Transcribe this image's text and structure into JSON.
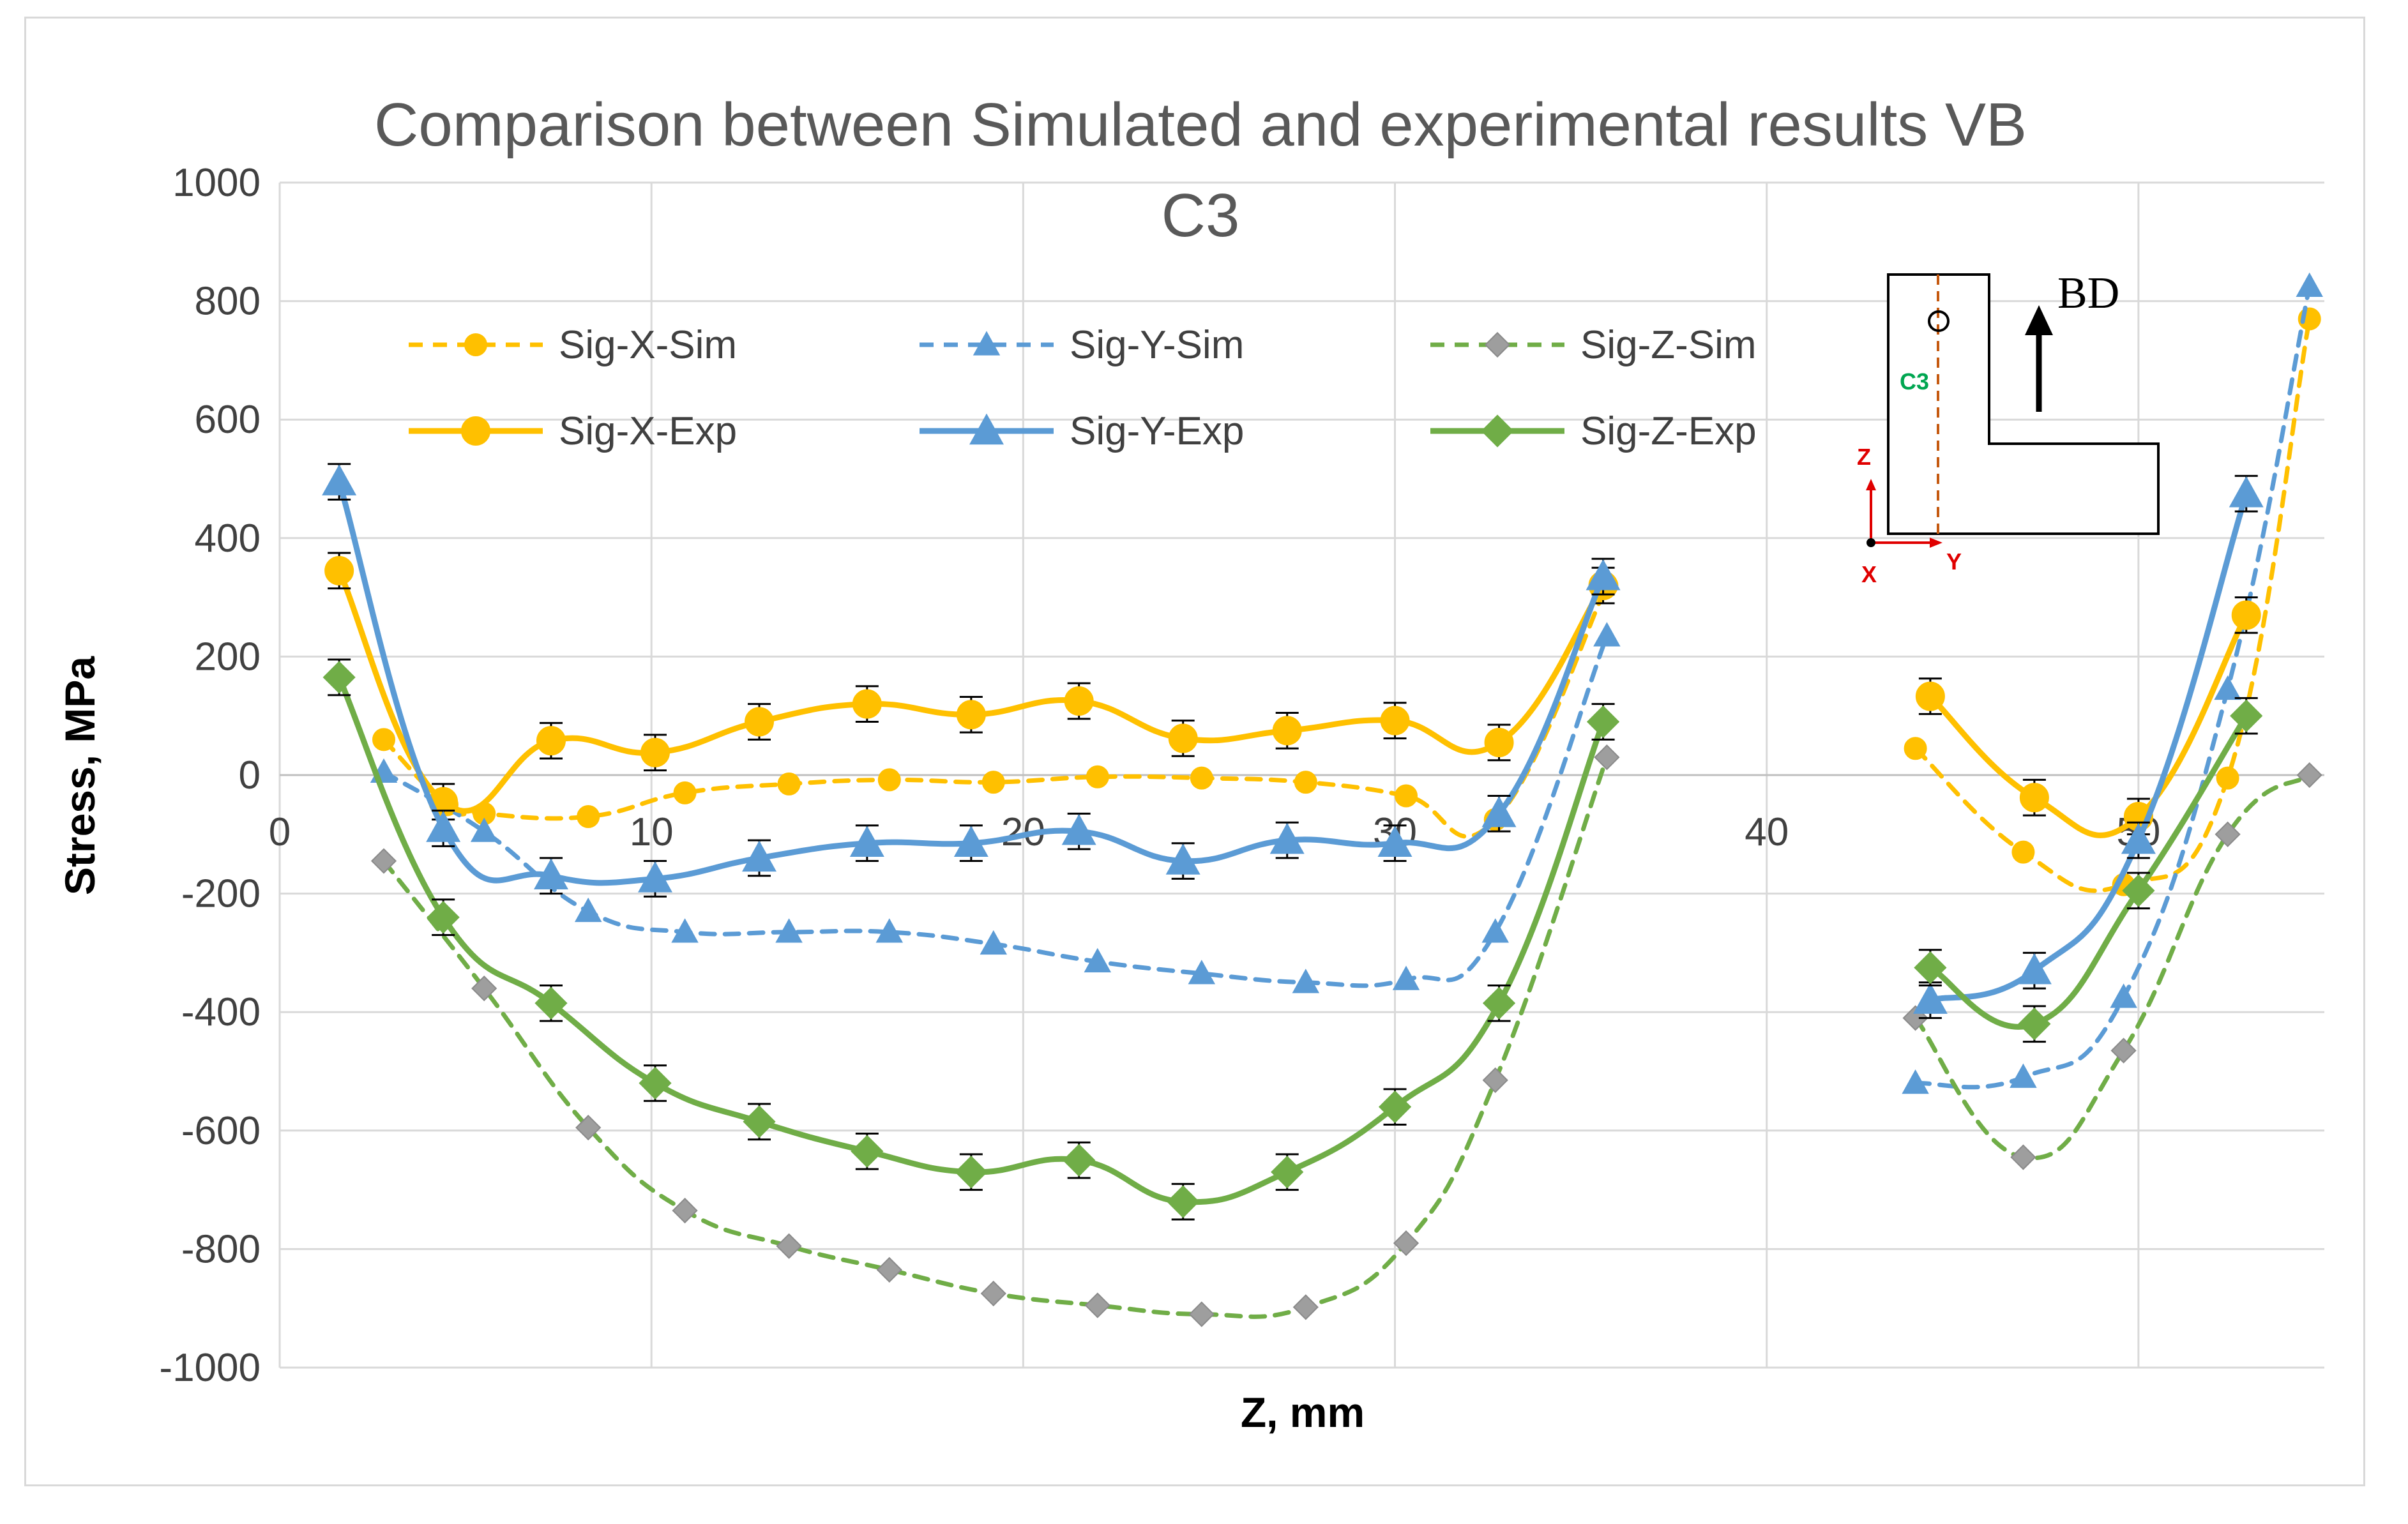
{
  "chart_data": {
    "type": "line",
    "title": "Comparison between Simulated and experimental results VB C3",
    "title_lines": [
      "Comparison between Simulated and experimental results VB",
      "C3"
    ],
    "xlabel": "Z, mm",
    "ylabel": "Stress, MPa",
    "xlim": [
      0,
      55
    ],
    "ylim": [
      -1000,
      1000
    ],
    "xticks": [
      0,
      10,
      20,
      30,
      40,
      50
    ],
    "yticks": [
      1000,
      800,
      600,
      400,
      200,
      0,
      -200,
      -400,
      -600,
      -800,
      -1000
    ],
    "grid": "horizontal and vertical major gridlines",
    "legend_position": "top-left inside plot, 3 columns x 2 rows",
    "series": [
      {
        "name": "Sig-X-Sim",
        "color": "#FFC000",
        "dash": "dashed",
        "marker": "circle",
        "errorbars": false,
        "segments": [
          [
            [
              2.8,
              60
            ],
            [
              4.5,
              -50
            ],
            [
              5.5,
              -65
            ],
            [
              8.3,
              -70
            ],
            [
              10.9,
              -30
            ],
            [
              13.7,
              -15
            ],
            [
              16.4,
              -8
            ],
            [
              19.2,
              -12
            ],
            [
              22.0,
              -3
            ],
            [
              24.8,
              -5
            ],
            [
              27.6,
              -12
            ],
            [
              30.3,
              -35
            ],
            [
              32.7,
              -75
            ],
            [
              35.7,
              320
            ]
          ],
          [
            [
              44.0,
              45
            ],
            [
              46.9,
              -130
            ],
            [
              49.6,
              -185
            ],
            [
              52.4,
              -5
            ],
            [
              54.6,
              770
            ]
          ]
        ]
      },
      {
        "name": "Sig-Y-Sim",
        "color": "#5B9BD5",
        "dash": "dashed",
        "marker": "triangle",
        "errorbars": false,
        "segments": [
          [
            [
              2.8,
              5
            ],
            [
              5.5,
              -95
            ],
            [
              8.3,
              -230
            ],
            [
              10.9,
              -265
            ],
            [
              13.7,
              -265
            ],
            [
              16.4,
              -265
            ],
            [
              19.2,
              -285
            ],
            [
              22.0,
              -315
            ],
            [
              24.8,
              -335
            ],
            [
              27.6,
              -350
            ],
            [
              30.3,
              -345
            ],
            [
              32.7,
              -265
            ],
            [
              35.7,
              235
            ]
          ],
          [
            [
              44.0,
              -520
            ],
            [
              46.9,
              -510
            ],
            [
              49.6,
              -375
            ],
            [
              52.4,
              145
            ],
            [
              54.6,
              825
            ]
          ]
        ]
      },
      {
        "name": "Sig-Z-Sim",
        "color": "#70AD47",
        "dash": "dashed",
        "marker": "diamond",
        "markerFill": "#9E9E9E",
        "errorbars": false,
        "segments": [
          [
            [
              2.8,
              -145
            ],
            [
              5.5,
              -360
            ],
            [
              8.3,
              -595
            ],
            [
              10.9,
              -735
            ],
            [
              13.7,
              -795
            ],
            [
              16.4,
              -835
            ],
            [
              19.2,
              -875
            ],
            [
              22.0,
              -895
            ],
            [
              24.8,
              -910
            ],
            [
              27.6,
              -898
            ],
            [
              30.3,
              -790
            ],
            [
              32.7,
              -515
            ],
            [
              35.7,
              30
            ]
          ],
          [
            [
              44.0,
              -410
            ],
            [
              46.9,
              -645
            ],
            [
              49.6,
              -465
            ],
            [
              52.4,
              -100
            ],
            [
              54.6,
              0
            ]
          ]
        ]
      },
      {
        "name": "Sig-X-Exp",
        "color": "#FFC000",
        "dash": "solid",
        "marker": "circle",
        "errorbars": true,
        "segments": [
          [
            [
              1.6,
              345
            ],
            [
              4.4,
              -45
            ],
            [
              7.3,
              58
            ],
            [
              10.1,
              38
            ],
            [
              12.9,
              90
            ],
            [
              15.8,
              120
            ],
            [
              18.6,
              102
            ],
            [
              21.5,
              125
            ],
            [
              24.3,
              62
            ],
            [
              27.1,
              75
            ],
            [
              30.0,
              92
            ],
            [
              32.8,
              55
            ],
            [
              35.6,
              320
            ]
          ],
          [
            [
              44.4,
              133
            ],
            [
              47.2,
              -38
            ],
            [
              50.0,
              -70
            ],
            [
              52.9,
              270
            ]
          ]
        ]
      },
      {
        "name": "Sig-Y-Exp",
        "color": "#5B9BD5",
        "dash": "solid",
        "marker": "triangle",
        "errorbars": true,
        "segments": [
          [
            [
              1.6,
              495
            ],
            [
              4.4,
              -90
            ],
            [
              7.3,
              -170
            ],
            [
              10.1,
              -175
            ],
            [
              12.9,
              -140
            ],
            [
              15.8,
              -115
            ],
            [
              18.6,
              -115
            ],
            [
              21.5,
              -95
            ],
            [
              24.3,
              -145
            ],
            [
              27.1,
              -110
            ],
            [
              30.0,
              -115
            ],
            [
              32.8,
              -65
            ],
            [
              35.6,
              335
            ]
          ],
          [
            [
              44.4,
              -380
            ],
            [
              47.2,
              -330
            ],
            [
              50.0,
              -110
            ],
            [
              52.9,
              475
            ]
          ]
        ]
      },
      {
        "name": "Sig-Z-Exp",
        "color": "#70AD47",
        "dash": "solid",
        "marker": "diamond",
        "errorbars": true,
        "segments": [
          [
            [
              1.6,
              165
            ],
            [
              4.4,
              -240
            ],
            [
              7.3,
              -385
            ],
            [
              10.1,
              -520
            ],
            [
              12.9,
              -585
            ],
            [
              15.8,
              -635
            ],
            [
              18.6,
              -670
            ],
            [
              21.5,
              -650
            ],
            [
              24.3,
              -720
            ],
            [
              27.1,
              -670
            ],
            [
              30.0,
              -560
            ],
            [
              32.8,
              -385
            ],
            [
              35.6,
              90
            ]
          ],
          [
            [
              44.4,
              -325
            ],
            [
              47.2,
              -420
            ],
            [
              50.0,
              -195
            ],
            [
              52.9,
              100
            ]
          ]
        ]
      }
    ],
    "errorbar_magnitude": 30,
    "inset": {
      "labels": {
        "bd": "BD",
        "c3": "C3",
        "z": "Z",
        "y": "Y",
        "x": "X"
      }
    }
  }
}
